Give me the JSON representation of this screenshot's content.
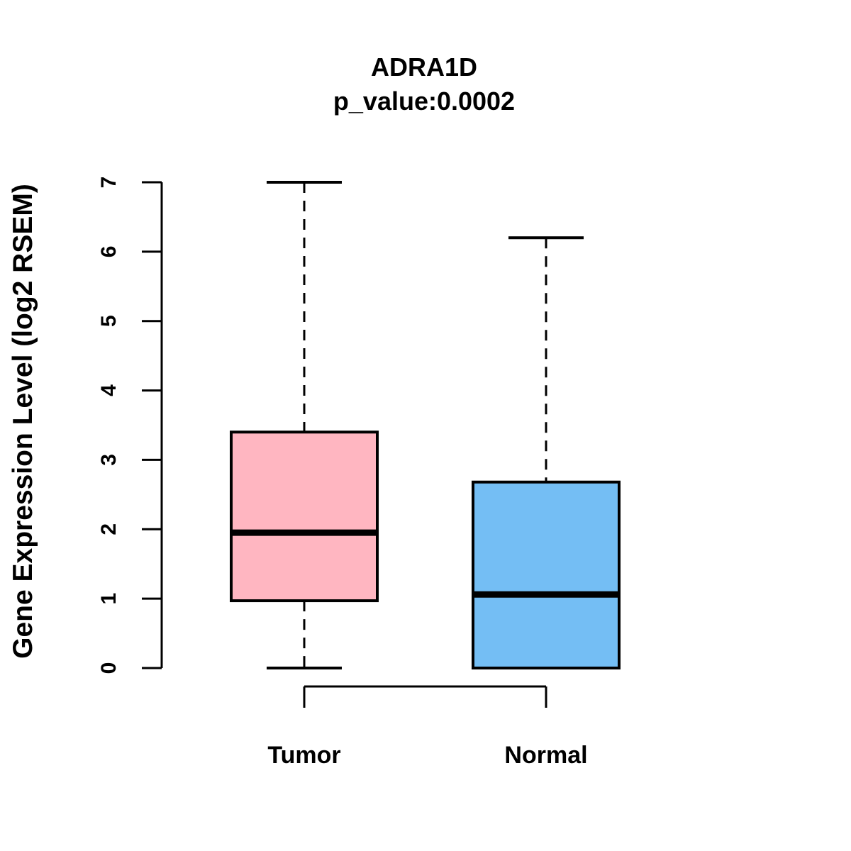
{
  "figure": {
    "background": "#FFFFFF",
    "line_color": "#000000"
  },
  "chart_data": {
    "type": "boxplot",
    "title": "ADRA1D",
    "subtitle": "p_value:0.0002",
    "ylabel": "Gene Expression Level (log2 RSEM)",
    "xlabel": "",
    "ylim": [
      0,
      7
    ],
    "yticks": [
      "0",
      "1",
      "2",
      "3",
      "4",
      "5",
      "6",
      "7"
    ],
    "grid": false,
    "legend": "none",
    "categories": [
      "Tumor",
      "Normal"
    ],
    "series": [
      {
        "name": "Tumor",
        "color": "#FFB6C1",
        "whisker_low": 0,
        "q1": 0.97,
        "median": 1.95,
        "q3": 3.4,
        "whisker_high": 7.0
      },
      {
        "name": "Normal",
        "color": "#74BEF4",
        "whisker_low": 0,
        "q1": 0.0,
        "median": 1.06,
        "q3": 2.68,
        "whisker_high": 6.2
      }
    ],
    "comparison_bracket": {
      "between": [
        "Tumor",
        "Normal"
      ]
    }
  }
}
